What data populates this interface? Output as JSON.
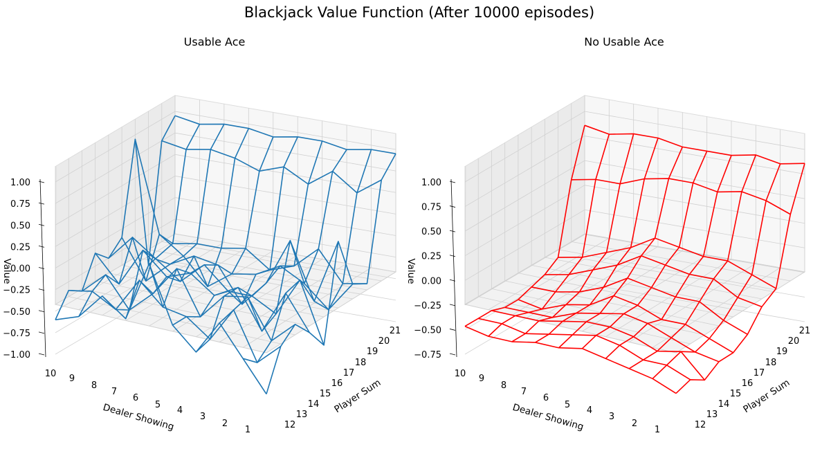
{
  "figure": {
    "title": "Blackjack Value Function (After 10000 episodes)"
  },
  "colors": {
    "usable": "#1f77b4",
    "no_usable": "#ff0000"
  },
  "chart_data": [
    {
      "type": "wireframe-3d",
      "title": "Usable Ace",
      "xlabel": "Player Sum",
      "ylabel": "Dealer Showing",
      "zlabel": "Value",
      "x_ticks": [
        12,
        13,
        14,
        15,
        16,
        17,
        18,
        19,
        20,
        21
      ],
      "y_ticks": [
        10,
        9,
        8,
        7,
        6,
        5,
        4,
        3,
        2,
        1
      ],
      "z_ticks": [
        "1.00",
        "0.75",
        "0.50",
        "0.25",
        "0.00",
        "−0.25",
        "−0.50",
        "−0.75",
        "−1.00"
      ],
      "zlim": [
        -1.0,
        1.0
      ],
      "player_sums": [
        12,
        13,
        14,
        15,
        16,
        17,
        18,
        19,
        20,
        21
      ],
      "dealer_showing": [
        1,
        2,
        3,
        4,
        5,
        6,
        7,
        8,
        9,
        10
      ],
      "values": [
        [
          -0.9,
          -0.55,
          -0.2,
          -0.6,
          -0.35,
          0.3,
          -0.4,
          -0.2,
          -0.5,
          -0.6
        ],
        [
          -0.45,
          -0.7,
          -0.15,
          -0.55,
          -0.35,
          -0.3,
          -0.05,
          -0.45,
          -0.3,
          -0.35
        ],
        [
          -0.3,
          -0.55,
          -0.1,
          -0.15,
          -0.45,
          0.05,
          -0.3,
          -0.55,
          -0.2,
          -0.45
        ],
        [
          -0.5,
          -0.1,
          -0.6,
          -0.15,
          -0.3,
          -0.1,
          -0.2,
          0.05,
          -0.4,
          -0.1
        ],
        [
          -0.75,
          -0.05,
          -0.5,
          -0.35,
          -0.35,
          -0.1,
          -0.35,
          -0.15,
          0.05,
          -0.25
        ],
        [
          0.35,
          -0.4,
          0.25,
          -0.3,
          -0.6,
          -0.2,
          -0.15,
          -0.3,
          -0.55,
          -0.1
        ],
        [
          -0.25,
          -0.6,
          -0.35,
          -0.2,
          -0.35,
          -0.4,
          -0.6,
          -0.3,
          -0.1,
          0.95
        ],
        [
          -0.35,
          -0.4,
          -0.05,
          -0.3,
          -0.4,
          -0.2,
          -0.25,
          -0.25,
          -0.3,
          -0.6
        ],
        [
          0.75,
          0.55,
          0.75,
          0.55,
          0.7,
          0.6,
          0.7,
          0.75,
          0.7,
          0.75
        ],
        [
          0.95,
          0.95,
          0.9,
          0.95,
          0.95,
          0.9,
          0.95,
          0.95,
          0.9,
          0.95
        ]
      ]
    },
    {
      "type": "wireframe-3d",
      "title": "No Usable Ace",
      "xlabel": "Player Sum",
      "ylabel": "Dealer Showing",
      "zlabel": "Value",
      "x_ticks": [
        12,
        13,
        14,
        15,
        16,
        17,
        18,
        19,
        20,
        21
      ],
      "y_ticks": [
        10,
        9,
        8,
        7,
        6,
        5,
        4,
        3,
        2,
        1
      ],
      "z_ticks": [
        "1.00",
        "0.75",
        "0.50",
        "0.25",
        "0.00",
        "−0.25",
        "−0.50",
        "−0.75"
      ],
      "zlim": [
        -0.8,
        1.05
      ],
      "player_sums": [
        12,
        13,
        14,
        15,
        16,
        17,
        18,
        19,
        20,
        21
      ],
      "dealer_showing": [
        1,
        2,
        3,
        4,
        5,
        6,
        7,
        8,
        9,
        10
      ],
      "values": [
        [
          -0.7,
          -0.6,
          -0.55,
          -0.5,
          -0.45,
          -0.5,
          -0.5,
          -0.55,
          -0.55,
          -0.5
        ],
        [
          -0.65,
          -0.55,
          -0.55,
          -0.45,
          -0.4,
          -0.45,
          -0.5,
          -0.55,
          -0.5,
          -0.5
        ],
        [
          -0.75,
          -0.5,
          -0.55,
          -0.45,
          -0.4,
          -0.4,
          -0.45,
          -0.5,
          -0.5,
          -0.5
        ],
        [
          -0.65,
          -0.6,
          -0.5,
          -0.4,
          -0.35,
          -0.4,
          -0.45,
          -0.55,
          -0.55,
          -0.55
        ],
        [
          -0.65,
          -0.55,
          -0.45,
          -0.45,
          -0.35,
          -0.3,
          -0.45,
          -0.5,
          -0.6,
          -0.55
        ],
        [
          -0.55,
          -0.45,
          -0.3,
          -0.3,
          -0.25,
          -0.2,
          -0.35,
          -0.45,
          -0.5,
          -0.5
        ],
        [
          -0.35,
          -0.3,
          -0.15,
          -0.15,
          -0.1,
          -0.05,
          -0.2,
          -0.3,
          -0.4,
          -0.45
        ],
        [
          -0.25,
          -0.15,
          -0.05,
          -0.05,
          0.0,
          0.05,
          -0.1,
          -0.2,
          -0.3,
          -0.35
        ],
        [
          0.45,
          0.55,
          0.6,
          0.55,
          0.6,
          0.6,
          0.55,
          0.45,
          0.45,
          0.4
        ],
        [
          0.9,
          0.85,
          0.9,
          0.85,
          0.85,
          0.85,
          0.9,
          0.9,
          0.85,
          0.9
        ]
      ]
    }
  ]
}
